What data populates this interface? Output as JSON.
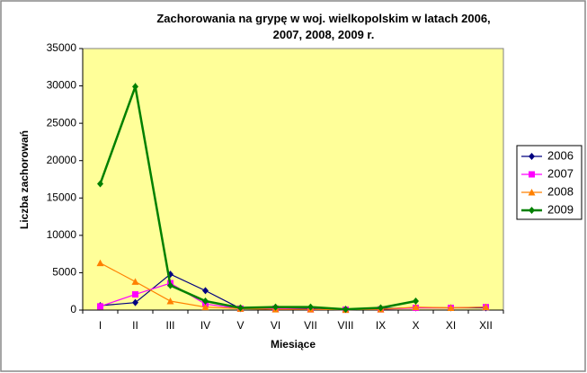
{
  "chart_data": {
    "type": "line",
    "title": "Zachorowania na grypę w woj. wielkopolskim w latach 2006, 2007, 2008, 2009 r.",
    "x_label": "Miesiące",
    "y_label": "Liczba zachorowań",
    "categories": [
      "I",
      "II",
      "III",
      "IV",
      "V",
      "VI",
      "VII",
      "VIII",
      "IX",
      "X",
      "XI",
      "XII"
    ],
    "series": [
      {
        "name": "2006",
        "color": "#000080",
        "marker": "diamond",
        "values": [
          600,
          1000,
          4800,
          2600,
          200,
          200,
          200,
          100,
          200,
          300,
          300,
          300
        ]
      },
      {
        "name": "2007",
        "color": "#ff00ff",
        "marker": "square",
        "values": [
          500,
          2100,
          3600,
          800,
          200,
          200,
          100,
          50,
          100,
          300,
          300,
          400
        ]
      },
      {
        "name": "2008",
        "color": "#ff8000",
        "marker": "triangle",
        "values": [
          6300,
          3800,
          1200,
          400,
          200,
          100,
          100,
          50,
          100,
          400,
          300,
          400
        ]
      },
      {
        "name": "2009",
        "color": "#008000",
        "marker": "diamond",
        "values": [
          16900,
          29900,
          3300,
          1200,
          300,
          400,
          400,
          100,
          300,
          1200,
          null,
          null
        ]
      }
    ],
    "ylim": [
      0,
      35000
    ],
    "yticks": [
      0,
      5000,
      10000,
      15000,
      20000,
      25000,
      30000,
      35000
    ],
    "grid": false,
    "legend": "right"
  }
}
